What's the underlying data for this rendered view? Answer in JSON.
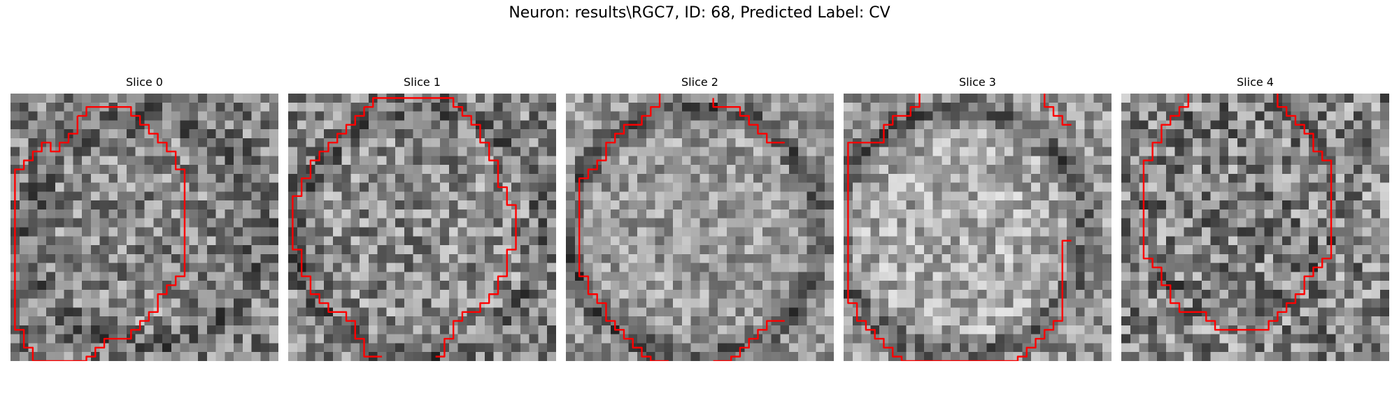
{
  "figure": {
    "title": "Neuron: results\\RGC7, ID: 68, Predicted Label: CV",
    "contour_color": "#ff0000"
  },
  "panels": [
    {
      "title": "Slice 0",
      "image_description_name": "noisy-grayscale-slice-0",
      "contours": [
        [
          [
            7,
            2
          ],
          [
            8,
            2
          ],
          [
            8,
            1
          ],
          [
            13,
            1
          ],
          [
            13,
            2
          ],
          [
            14,
            2
          ],
          [
            14,
            3
          ],
          [
            15,
            3
          ],
          [
            15,
            4
          ],
          [
            16,
            4
          ],
          [
            16,
            5
          ],
          [
            17,
            5
          ],
          [
            17,
            6
          ],
          [
            18,
            6
          ],
          [
            18,
            8
          ],
          [
            19,
            8
          ],
          [
            19,
            20
          ],
          [
            18,
            20
          ],
          [
            18,
            21
          ],
          [
            17,
            21
          ],
          [
            17,
            22
          ],
          [
            16,
            22
          ],
          [
            16,
            24
          ],
          [
            15,
            24
          ],
          [
            15,
            25
          ],
          [
            14,
            25
          ],
          [
            14,
            26
          ],
          [
            13,
            26
          ],
          [
            13,
            27
          ],
          [
            10,
            27
          ],
          [
            10,
            28
          ],
          [
            9,
            28
          ],
          [
            9,
            29
          ],
          [
            8,
            29
          ],
          [
            8,
            30
          ],
          [
            7,
            30
          ],
          [
            7,
            31
          ],
          [
            6,
            31
          ],
          [
            6,
            32
          ],
          [
            4,
            32
          ],
          [
            4,
            31
          ],
          [
            3,
            31
          ],
          [
            3,
            30
          ],
          [
            2,
            30
          ],
          [
            2,
            28
          ],
          [
            1,
            28
          ],
          [
            1,
            26
          ],
          [
            0,
            26
          ],
          [
            0,
            8
          ],
          [
            1,
            8
          ],
          [
            1,
            7
          ],
          [
            2,
            7
          ],
          [
            2,
            6
          ],
          [
            3,
            6
          ],
          [
            3,
            5
          ],
          [
            4,
            5
          ],
          [
            4,
            6
          ],
          [
            5,
            6
          ],
          [
            5,
            5
          ],
          [
            6,
            5
          ],
          [
            6,
            4
          ],
          [
            7,
            4
          ],
          [
            7,
            2
          ]
        ]
      ]
    },
    {
      "title": "Slice 1",
      "image_description_name": "noisy-grayscale-slice-1",
      "contours": [
        [
          [
            8,
            1
          ],
          [
            9,
            1
          ],
          [
            9,
            0
          ],
          [
            18,
            0
          ],
          [
            18,
            1
          ],
          [
            19,
            1
          ],
          [
            19,
            2
          ],
          [
            20,
            2
          ],
          [
            20,
            3
          ],
          [
            21,
            3
          ],
          [
            21,
            5
          ],
          [
            22,
            5
          ],
          [
            22,
            7
          ],
          [
            23,
            7
          ],
          [
            23,
            10
          ],
          [
            24,
            10
          ],
          [
            24,
            12
          ],
          [
            25,
            12
          ],
          [
            25,
            17
          ],
          [
            24,
            17
          ],
          [
            24,
            20
          ],
          [
            23,
            20
          ],
          [
            23,
            22
          ],
          [
            22,
            22
          ],
          [
            22,
            23
          ],
          [
            21,
            23
          ],
          [
            21,
            24
          ],
          [
            19,
            24
          ],
          [
            19,
            25
          ],
          [
            18,
            25
          ],
          [
            18,
            27
          ],
          [
            17,
            27
          ],
          [
            17,
            29
          ],
          [
            16,
            29
          ]
        ],
        [
          [
            10,
            29
          ],
          [
            8,
            29
          ],
          [
            8,
            27
          ],
          [
            7,
            27
          ],
          [
            7,
            25
          ],
          [
            6,
            25
          ],
          [
            6,
            24
          ],
          [
            4,
            24
          ],
          [
            4,
            23
          ],
          [
            3,
            23
          ],
          [
            3,
            22
          ],
          [
            2,
            22
          ],
          [
            2,
            20
          ],
          [
            1,
            20
          ],
          [
            1,
            17
          ],
          [
            0,
            17
          ],
          [
            0,
            11
          ],
          [
            1,
            11
          ],
          [
            1,
            9
          ],
          [
            2,
            9
          ],
          [
            2,
            7
          ],
          [
            3,
            7
          ],
          [
            3,
            6
          ],
          [
            4,
            6
          ],
          [
            4,
            5
          ],
          [
            5,
            5
          ],
          [
            5,
            4
          ],
          [
            6,
            4
          ],
          [
            6,
            3
          ],
          [
            7,
            3
          ],
          [
            7,
            2
          ],
          [
            8,
            2
          ],
          [
            8,
            1
          ]
        ]
      ]
    },
    {
      "title": "Slice 2",
      "image_description_name": "noisy-grayscale-slice-2",
      "contours": [
        [
          [
            10,
            -1
          ],
          [
            10,
            1
          ],
          [
            9,
            1
          ],
          [
            9,
            2
          ],
          [
            8,
            2
          ],
          [
            8,
            3
          ],
          [
            6,
            3
          ],
          [
            6,
            4
          ],
          [
            5,
            4
          ],
          [
            5,
            5
          ],
          [
            4,
            5
          ],
          [
            4,
            7
          ],
          [
            3,
            7
          ],
          [
            3,
            8
          ],
          [
            2,
            8
          ],
          [
            2,
            9
          ],
          [
            1,
            9
          ],
          [
            1,
            20
          ],
          [
            2,
            20
          ],
          [
            2,
            22
          ],
          [
            3,
            22
          ],
          [
            3,
            23
          ],
          [
            4,
            23
          ],
          [
            4,
            25
          ],
          [
            5,
            25
          ],
          [
            5,
            26
          ],
          [
            6,
            26
          ],
          [
            6,
            27
          ],
          [
            7,
            27
          ],
          [
            7,
            28
          ],
          [
            8,
            28
          ],
          [
            8,
            29
          ],
          [
            9,
            29
          ],
          [
            9,
            30
          ],
          [
            10,
            30
          ],
          [
            10,
            31
          ],
          [
            11,
            31
          ]
        ],
        [
          [
            16,
            0
          ],
          [
            16,
            1
          ],
          [
            19,
            1
          ],
          [
            19,
            2
          ],
          [
            20,
            2
          ],
          [
            20,
            3
          ],
          [
            21,
            3
          ],
          [
            21,
            4
          ],
          [
            22,
            4
          ],
          [
            22,
            5
          ],
          [
            24,
            5
          ]
        ],
        [
          [
            16,
            31
          ],
          [
            16,
            30
          ],
          [
            18,
            30
          ],
          [
            18,
            29
          ],
          [
            19,
            29
          ],
          [
            19,
            28
          ],
          [
            20,
            28
          ],
          [
            20,
            27
          ],
          [
            21,
            27
          ],
          [
            21,
            26
          ],
          [
            22,
            26
          ],
          [
            22,
            25
          ],
          [
            24,
            25
          ]
        ]
      ]
    },
    {
      "title": "Slice 3",
      "image_description_name": "noisy-grayscale-slice-3",
      "contours": [
        [
          [
            8,
            -1
          ],
          [
            8,
            1
          ],
          [
            7,
            1
          ],
          [
            7,
            2
          ],
          [
            5,
            2
          ],
          [
            5,
            3
          ],
          [
            4,
            3
          ],
          [
            4,
            5
          ],
          [
            0,
            5
          ],
          [
            0,
            23
          ],
          [
            1,
            23
          ],
          [
            1,
            25
          ],
          [
            2,
            25
          ],
          [
            2,
            26
          ],
          [
            3,
            26
          ],
          [
            3,
            27
          ],
          [
            4,
            27
          ],
          [
            4,
            28
          ],
          [
            5,
            28
          ],
          [
            5,
            29
          ],
          [
            6,
            29
          ],
          [
            6,
            30
          ],
          [
            7,
            30
          ],
          [
            7,
            31
          ],
          [
            18,
            31
          ],
          [
            18,
            30
          ],
          [
            19,
            30
          ],
          [
            19,
            29
          ],
          [
            20,
            29
          ],
          [
            20,
            28
          ],
          [
            21,
            28
          ],
          [
            21,
            27
          ],
          [
            22,
            27
          ],
          [
            22,
            26
          ],
          [
            23,
            26
          ],
          [
            23,
            25
          ],
          [
            24,
            25
          ],
          [
            24,
            16
          ],
          [
            25,
            16
          ]
        ],
        [
          [
            22,
            -1
          ],
          [
            22,
            1
          ],
          [
            23,
            1
          ],
          [
            23,
            2
          ],
          [
            24,
            2
          ],
          [
            24,
            3
          ],
          [
            25,
            3
          ]
        ]
      ]
    },
    {
      "title": "Slice 4",
      "image_description_name": "noisy-grayscale-slice-4",
      "contours": [
        [
          [
            7,
            -1
          ],
          [
            7,
            1
          ],
          [
            6,
            1
          ],
          [
            6,
            2
          ],
          [
            5,
            2
          ],
          [
            5,
            3
          ],
          [
            4,
            3
          ],
          [
            4,
            5
          ],
          [
            3,
            5
          ],
          [
            3,
            7
          ],
          [
            2,
            7
          ],
          [
            2,
            18
          ],
          [
            3,
            18
          ],
          [
            3,
            19
          ],
          [
            4,
            19
          ],
          [
            4,
            21
          ],
          [
            5,
            21
          ],
          [
            5,
            23
          ],
          [
            6,
            23
          ],
          [
            6,
            24
          ],
          [
            9,
            24
          ],
          [
            9,
            25
          ],
          [
            10,
            25
          ],
          [
            10,
            26
          ],
          [
            16,
            26
          ],
          [
            16,
            25
          ],
          [
            17,
            25
          ],
          [
            17,
            24
          ],
          [
            18,
            24
          ],
          [
            18,
            23
          ],
          [
            19,
            23
          ],
          [
            19,
            22
          ],
          [
            20,
            22
          ],
          [
            20,
            20
          ],
          [
            21,
            20
          ],
          [
            21,
            19
          ],
          [
            22,
            19
          ],
          [
            22,
            18
          ],
          [
            23,
            18
          ],
          [
            23,
            7
          ],
          [
            22,
            7
          ],
          [
            22,
            6
          ],
          [
            21,
            6
          ],
          [
            21,
            4
          ],
          [
            20,
            4
          ],
          [
            20,
            3
          ],
          [
            19,
            3
          ],
          [
            19,
            2
          ],
          [
            18,
            2
          ],
          [
            18,
            1
          ],
          [
            17,
            1
          ],
          [
            17,
            -1
          ]
        ]
      ]
    }
  ]
}
